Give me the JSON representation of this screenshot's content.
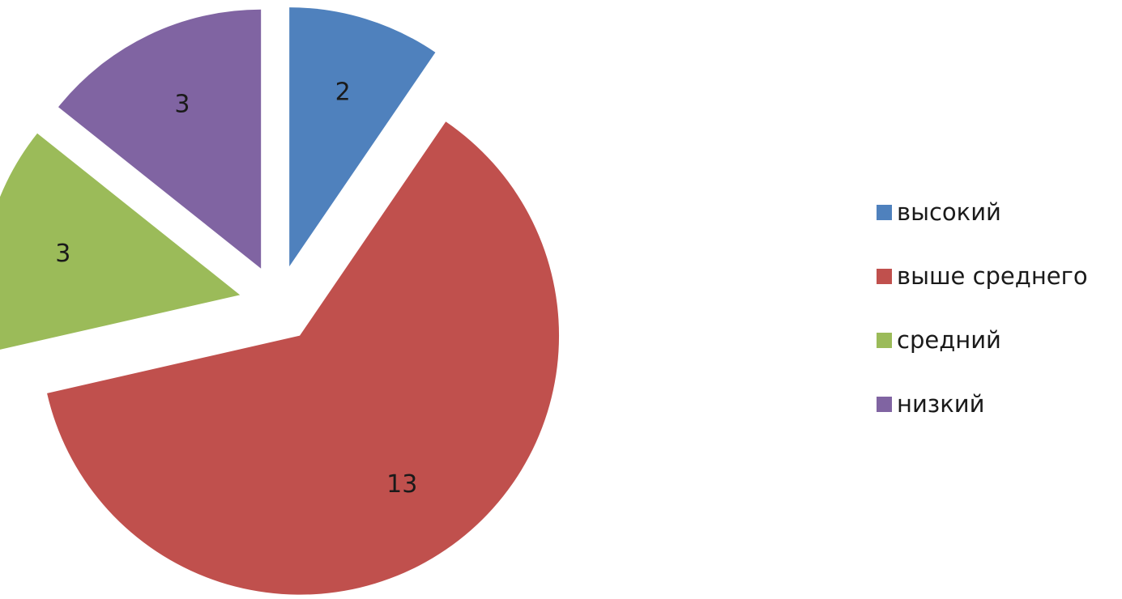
{
  "chart_data": {
    "type": "pie",
    "title": "",
    "categories": [
      "высокий",
      "выше среднего",
      "средний",
      "низкий"
    ],
    "values": [
      2,
      13,
      3,
      3
    ],
    "colors": [
      "#4f81bd",
      "#c0504d",
      "#9bbb59",
      "#8064a2"
    ],
    "exploded": true,
    "start_angle_deg": 0,
    "direction": "clockwise",
    "data_labels": [
      "2",
      "13",
      "3",
      "3"
    ],
    "legend": {
      "position": "right",
      "items": [
        {
          "label": "высокий",
          "color": "#4f81bd"
        },
        {
          "label": "выше среднего",
          "color": "#c0504d"
        },
        {
          "label": "средний",
          "color": "#9bbb59"
        },
        {
          "label": "низкий",
          "color": "#8064a2"
        }
      ]
    }
  }
}
